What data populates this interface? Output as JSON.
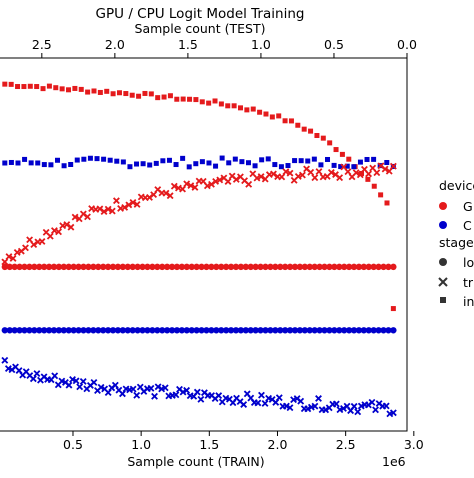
{
  "chart_data": {
    "type": "scatter",
    "title": "GPU / CPU Logit Model Training",
    "xlabel_bottom": "Sample count (TRAIN)",
    "xlabel_top": "Sample count (TEST)",
    "x_offset_text": "1e6",
    "bottom_axis": {
      "range": [
        -0.05,
        2.95
      ],
      "ticks": [
        0.5,
        1.0,
        1.5,
        2.0,
        2.5,
        3.0
      ],
      "tick_labels": [
        "0.5",
        "1.0",
        "1.5",
        "2.0",
        "2.5",
        "3.0"
      ]
    },
    "top_axis": {
      "range": [
        2.8,
        0.0
      ],
      "ticks": [
        2.5,
        2.0,
        1.5,
        1.0,
        0.5,
        0.0
      ],
      "tick_labels": [
        "2.5",
        "2.0",
        "1.5",
        "1.0",
        "0.5",
        "0.0"
      ]
    },
    "grid": false,
    "legend_position": "right, partially cropped",
    "legend": {
      "device_title": "device",
      "devices": [
        {
          "label": "G",
          "color": "#e41a1c",
          "marker": "circle"
        },
        {
          "label": "C",
          "color": "#0000cc",
          "marker": "circle"
        }
      ],
      "stage_title": "stage",
      "stages": [
        {
          "label": "lo",
          "marker": "circle"
        },
        {
          "label": "tr",
          "marker": "x"
        },
        {
          "label": "in",
          "marker": "square"
        }
      ]
    },
    "colors": {
      "gpu": "#e41a1c",
      "cpu": "#0000cc"
    },
    "series": [
      {
        "device": "GPU",
        "stage": "inference",
        "marker": "square",
        "color": "#e41a1c",
        "x_start": 0.0,
        "x_end": 2.85,
        "points": 62,
        "y_start": 0.93,
        "y_end": 0.58,
        "y_scatter": 0.005,
        "note_drop_at_end": 0.33
      },
      {
        "device": "CPU",
        "stage": "inference",
        "marker": "square",
        "color": "#0000cc",
        "x_start": 0.0,
        "x_end": 2.85,
        "points": 60,
        "y_start": 0.72,
        "y_end": 0.72,
        "y_scatter": 0.012
      },
      {
        "device": "GPU",
        "stage": "training",
        "marker": "x",
        "color": "#e41a1c",
        "x_start": 0.0,
        "x_end": 2.85,
        "points": 95,
        "y_start": 0.46,
        "y_end": 0.7,
        "y_scatter": 0.015
      },
      {
        "device": "GPU",
        "stage": "loading",
        "marker": "circle",
        "color": "#e41a1c",
        "x_start": 0.0,
        "x_end": 2.85,
        "points": 80,
        "y_start": 0.44,
        "y_end": 0.44,
        "y_scatter": 0.0
      },
      {
        "device": "CPU",
        "stage": "loading",
        "marker": "circle",
        "color": "#0000cc",
        "x_start": 0.0,
        "x_end": 2.85,
        "points": 80,
        "y_start": 0.27,
        "y_end": 0.27,
        "y_scatter": 0.0
      },
      {
        "device": "CPU",
        "stage": "training",
        "marker": "x",
        "color": "#0000cc",
        "x_start": 0.0,
        "x_end": 2.85,
        "points": 110,
        "y_start": 0.18,
        "y_end": 0.06,
        "y_scatter": 0.015
      }
    ],
    "y_axis_labels_visible": false
  }
}
